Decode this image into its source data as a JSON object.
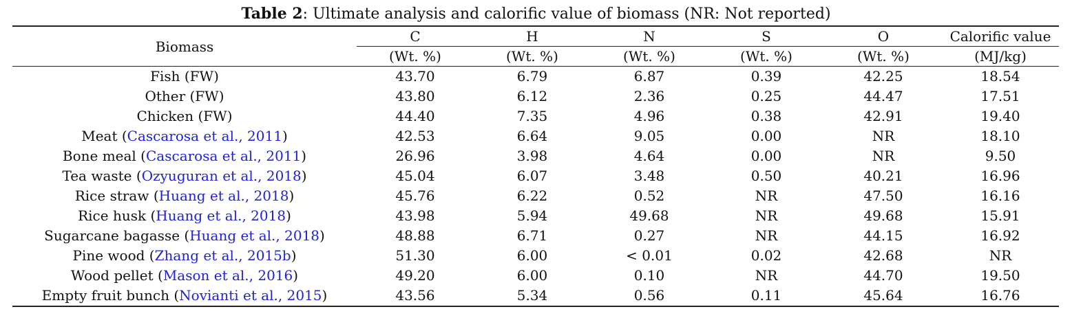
{
  "caption": {
    "label": "Table 2",
    "text": ": Ultimate analysis and calorific value of biomass (NR: Not reported)"
  },
  "colors": {
    "text": "#111111",
    "reference_link": "#1f22d6"
  },
  "headers": {
    "biomass": "Biomass",
    "columns": [
      {
        "name": "C",
        "unit": "(Wt. %)"
      },
      {
        "name": "H",
        "unit": "(Wt. %)"
      },
      {
        "name": "N",
        "unit": "(Wt. %)"
      },
      {
        "name": "S",
        "unit": "(Wt. %)"
      },
      {
        "name": "O",
        "unit": "(Wt. %)"
      },
      {
        "name": "Calorific value",
        "unit": "(MJ/kg)"
      }
    ]
  },
  "rows": [
    {
      "name": "Fish (FW)",
      "ref": "",
      "values": [
        "43.70",
        "6.79",
        "6.87",
        "0.39",
        "42.25",
        "18.54"
      ]
    },
    {
      "name": "Other (FW)",
      "ref": "",
      "values": [
        "43.80",
        "6.12",
        "2.36",
        "0.25",
        "44.47",
        "17.51"
      ]
    },
    {
      "name": "Chicken (FW)",
      "ref": "",
      "values": [
        "44.40",
        "7.35",
        "4.96",
        "0.38",
        "42.91",
        "19.40"
      ]
    },
    {
      "name": "Meat",
      "ref": "Cascarosa et al., 2011",
      "values": [
        "42.53",
        "6.64",
        "9.05",
        "0.00",
        "NR",
        "18.10"
      ]
    },
    {
      "name": "Bone meal",
      "ref": "Cascarosa et al., 2011",
      "values": [
        "26.96",
        "3.98",
        "4.64",
        "0.00",
        "NR",
        "9.50"
      ]
    },
    {
      "name": "Tea waste",
      "ref": "Ozyuguran et al., 2018",
      "values": [
        "45.04",
        "6.07",
        "3.48",
        "0.50",
        "40.21",
        "16.96"
      ]
    },
    {
      "name": "Rice straw",
      "ref": "Huang et al., 2018",
      "values": [
        "45.76",
        "6.22",
        "0.52",
        "NR",
        "47.50",
        "16.16"
      ]
    },
    {
      "name": "Rice husk",
      "ref": "Huang et al., 2018",
      "values": [
        "43.98",
        "5.94",
        "49.68",
        "NR",
        "49.68",
        "15.91"
      ]
    },
    {
      "name": "Sugarcane bagasse",
      "ref": "Huang et al., 2018",
      "values": [
        "48.88",
        "6.71",
        "0.27",
        "NR",
        "44.15",
        "16.92"
      ]
    },
    {
      "name": "Pine wood",
      "ref": "Zhang et al., 2015b",
      "values": [
        "51.30",
        "6.00",
        "< 0.01",
        "0.02",
        "42.68",
        "NR"
      ]
    },
    {
      "name": "Wood pellet",
      "ref": "Mason et al., 2016",
      "values": [
        "49.20",
        "6.00",
        "0.10",
        "NR",
        "44.70",
        "19.50"
      ]
    },
    {
      "name": "Empty fruit bunch",
      "ref": "Novianti et al., 2015",
      "values": [
        "43.56",
        "5.34",
        "0.56",
        "0.11",
        "45.64",
        "16.76"
      ]
    }
  ]
}
